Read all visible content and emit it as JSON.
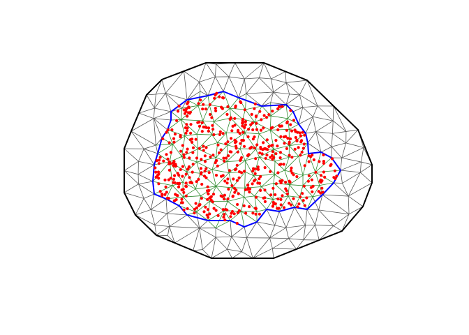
{
  "figure": {
    "style": {
      "background": "#ffffff",
      "outer_boundary_color": "#000000",
      "inner_boundary_color": "#0000ff",
      "mesh_edge_color": "#555555",
      "inner_edge_color": "#2e8b2e",
      "point_color": "#ff0000"
    },
    "mesh": {
      "outer_boundary_vertex_count": 20,
      "inner_boundary_vertex_count": 40,
      "interior_point_count": 520
    }
  }
}
